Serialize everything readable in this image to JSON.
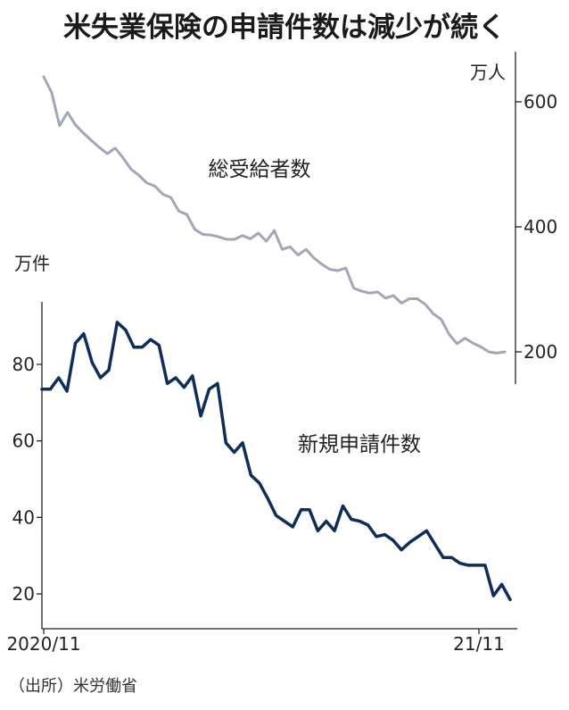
{
  "chart_data": {
    "type": "line",
    "title": "米失業保険の申請件数は減少が続く",
    "x_labels": [
      "2020/11",
      "21/11"
    ],
    "source": "（出所）米労働省",
    "series": [
      {
        "name": "総受給者数",
        "axis": "right",
        "unit": "万人",
        "color": "#a3a6b8",
        "values": [
          640,
          615,
          562,
          583,
          563,
          550,
          538,
          527,
          517,
          526,
          510,
          492,
          482,
          470,
          465,
          452,
          447,
          425,
          420,
          396,
          388,
          387,
          384,
          380,
          380,
          386,
          381,
          390,
          377,
          394,
          364,
          368,
          355,
          364,
          350,
          340,
          332,
          330,
          334,
          302,
          297,
          294,
          296,
          286,
          290,
          278,
          285,
          285,
          276,
          261,
          252,
          228,
          213,
          222,
          214,
          208,
          200,
          198,
          200
        ]
      },
      {
        "name": "新規申請件数",
        "axis": "left",
        "unit": "万件",
        "color": "#0f2d5a",
        "values": [
          73.5,
          73.5,
          76.5,
          73.0,
          85.5,
          88.0,
          80.5,
          76.5,
          78.5,
          91.0,
          89.0,
          84.5,
          84.5,
          86.5,
          85.0,
          75.0,
          76.5,
          74.0,
          77.0,
          66.5,
          73.5,
          75.0,
          59.5,
          57.0,
          59.5,
          51.0,
          49.0,
          45.0,
          40.5,
          39.0,
          37.5,
          42.0,
          42.0,
          36.5,
          39.0,
          36.5,
          43.0,
          39.5,
          39.0,
          38.0,
          35.0,
          35.5,
          34.0,
          31.5,
          33.5,
          35.0,
          36.5,
          33.0,
          29.5,
          29.5,
          28.0,
          27.5,
          27.5,
          27.5,
          19.5,
          22.5,
          18.5
        ]
      }
    ],
    "left_axis": {
      "unit_label": "万件",
      "ticks": [
        20,
        40,
        60,
        80
      ],
      "tick_labels": [
        "20",
        "40",
        "60",
        "80"
      ],
      "range": [
        14,
        98
      ]
    },
    "right_axis": {
      "unit_label": "万人",
      "ticks": [
        200,
        400,
        600
      ],
      "tick_labels": [
        "200",
        "400",
        "600"
      ],
      "range": [
        150,
        680
      ]
    },
    "grid": false
  }
}
